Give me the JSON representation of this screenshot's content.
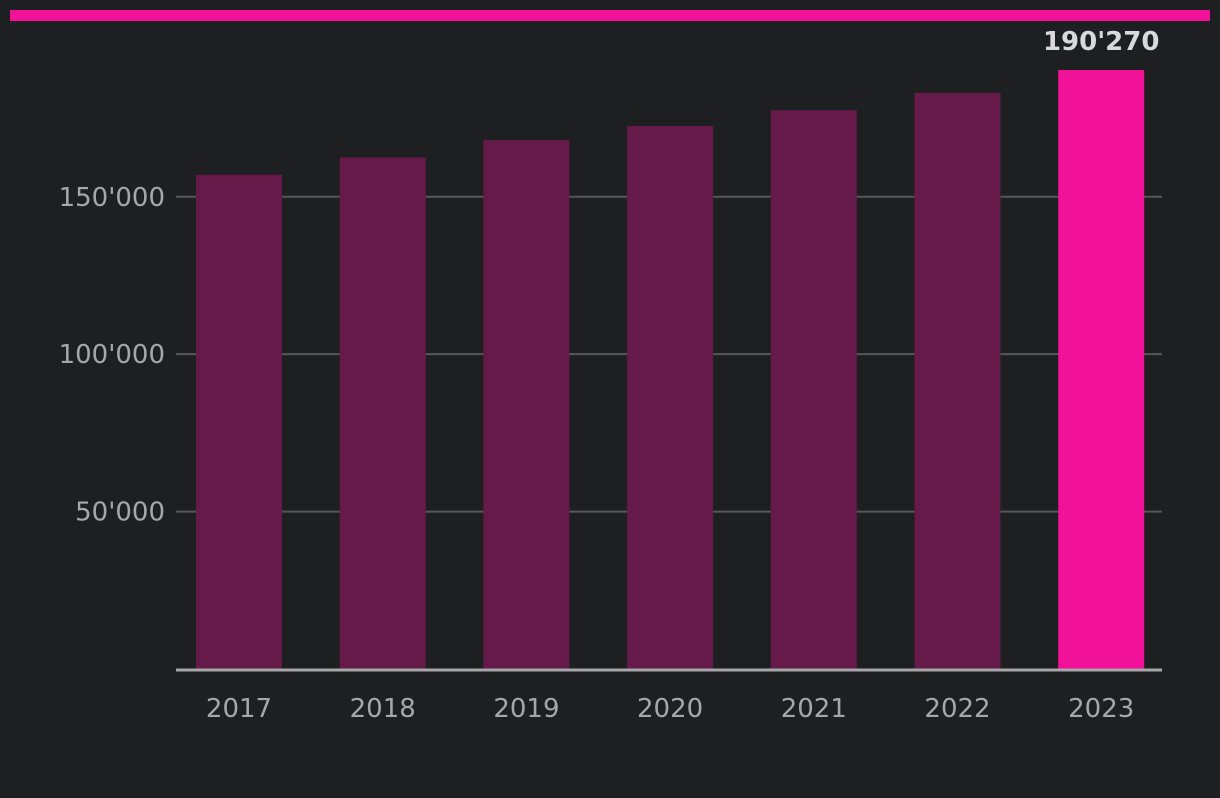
{
  "colors": {
    "background": "#1e1f21",
    "accent": "#f2129a",
    "bar": "#661a4a",
    "highlight_bar": "#f2129a",
    "grid": "#56575a",
    "axis": "#a7a7a9",
    "tick_text": "#a7a7a9",
    "value_label_text": "#d9d9db"
  },
  "chart_data": {
    "type": "bar",
    "title": "",
    "xlabel": "",
    "ylabel": "",
    "categories": [
      "2017",
      "2018",
      "2019",
      "2020",
      "2021",
      "2022",
      "2023"
    ],
    "values": [
      157000,
      162500,
      168000,
      172500,
      177500,
      183000,
      190270
    ],
    "highlight_index": 6,
    "value_labels": [
      {
        "index": 6,
        "text": "190'270"
      }
    ],
    "ylim": [
      0,
      190270
    ],
    "yticks": [
      {
        "value": 50000,
        "label": "50'000"
      },
      {
        "value": 100000,
        "label": "100'000"
      },
      {
        "value": 150000,
        "label": "150'000"
      }
    ],
    "grid": true,
    "legend": "none"
  }
}
